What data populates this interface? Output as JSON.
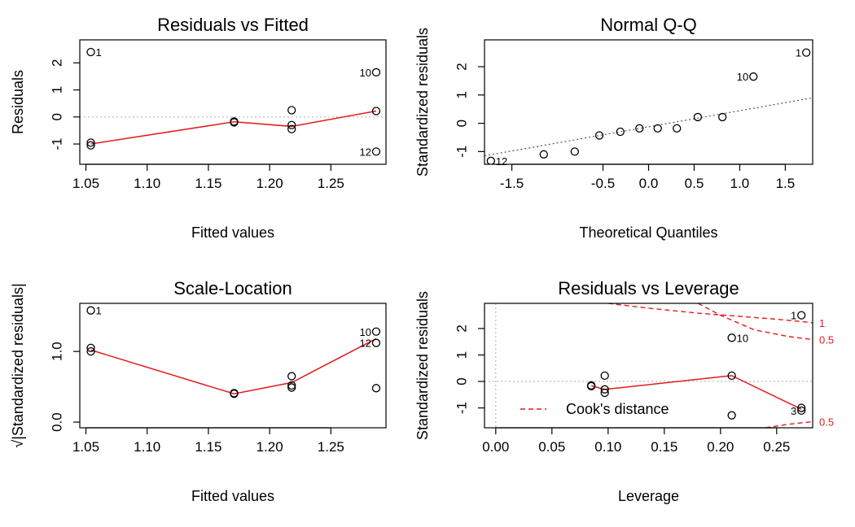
{
  "chart_data": [
    {
      "type": "scatter",
      "title": "Residuals vs Fitted",
      "xlabel": "Fitted values",
      "ylabel": "Residuals",
      "xlim": [
        1.045,
        1.295
      ],
      "ylim": [
        -1.75,
        2.85
      ],
      "xticks": [
        1.05,
        1.1,
        1.15,
        1.2,
        1.25
      ],
      "xtick_labels": [
        "1.05",
        "1.10",
        "1.15",
        "1.20",
        "1.25"
      ],
      "yticks": [
        -1,
        0,
        1,
        2
      ],
      "ytick_labels": [
        "-1",
        "0",
        "1",
        "2"
      ],
      "grid": false,
      "points": [
        {
          "x": 1.054,
          "y": 2.4
        },
        {
          "x": 1.054,
          "y": -0.95
        },
        {
          "x": 1.054,
          "y": -1.05
        },
        {
          "x": 1.171,
          "y": -0.17
        },
        {
          "x": 1.171,
          "y": -0.2
        },
        {
          "x": 1.218,
          "y": 0.25
        },
        {
          "x": 1.218,
          "y": -0.3
        },
        {
          "x": 1.218,
          "y": -0.45
        },
        {
          "x": 1.287,
          "y": 1.65
        },
        {
          "x": 1.287,
          "y": 0.22
        },
        {
          "x": 1.287,
          "y": -1.28
        }
      ],
      "point_labels": [
        {
          "text": "1",
          "x": 1.054,
          "y": 2.4,
          "side": "right"
        },
        {
          "text": "10",
          "x": 1.287,
          "y": 1.65,
          "side": "left"
        },
        {
          "text": "12",
          "x": 1.287,
          "y": -1.28,
          "side": "left"
        }
      ],
      "smooth_line": {
        "x": [
          1.054,
          1.171,
          1.218,
          1.287
        ],
        "y": [
          -1.0,
          -0.18,
          -0.35,
          0.22
        ],
        "color": "#e41a1c"
      },
      "reference_hline": {
        "y": 0,
        "color": "#bbbbbb",
        "style": "dotted"
      }
    },
    {
      "type": "scatter",
      "title": "Normal Q-Q",
      "xlabel": "Theoretical Quantiles",
      "ylabel": "Standardized residuals",
      "xlim": [
        -1.8,
        1.8
      ],
      "ylim": [
        -1.45,
        2.95
      ],
      "xticks": [
        -1.5,
        -0.5,
        0.0,
        0.5,
        1.0,
        1.5
      ],
      "xtick_labels": [
        "-1.5",
        "-0.5",
        "0.0",
        "0.5",
        "1.0",
        "1.5"
      ],
      "yticks": [
        -1,
        0,
        1,
        2
      ],
      "ytick_labels": [
        "-1",
        "0",
        "1",
        "2"
      ],
      "grid": false,
      "points": [
        {
          "x": -1.73,
          "y": -1.33
        },
        {
          "x": -1.15,
          "y": -1.1
        },
        {
          "x": -0.81,
          "y": -1.0
        },
        {
          "x": -0.54,
          "y": -0.43
        },
        {
          "x": -0.31,
          "y": -0.3
        },
        {
          "x": -0.1,
          "y": -0.18
        },
        {
          "x": 0.1,
          "y": -0.18
        },
        {
          "x": 0.31,
          "y": -0.18
        },
        {
          "x": 0.54,
          "y": 0.22
        },
        {
          "x": 0.81,
          "y": 0.22
        },
        {
          "x": 1.15,
          "y": 1.65
        },
        {
          "x": 1.73,
          "y": 2.5
        }
      ],
      "point_labels": [
        {
          "text": "12",
          "x": -1.73,
          "y": -1.33,
          "side": "right"
        },
        {
          "text": "10",
          "x": 1.15,
          "y": 1.65,
          "side": "left"
        },
        {
          "text": "1",
          "x": 1.73,
          "y": 2.5,
          "side": "left"
        }
      ],
      "reference_line": {
        "x": [
          -1.8,
          1.8
        ],
        "y": [
          -1.15,
          0.9
        ],
        "color": "#555555",
        "style": "dotted"
      }
    },
    {
      "type": "scatter",
      "title": "Scale-Location",
      "xlabel": "Fitted values",
      "ylabel": "√|Standardized residuals|",
      "xlim": [
        1.045,
        1.295
      ],
      "ylim": [
        -0.08,
        1.68
      ],
      "xticks": [
        1.05,
        1.1,
        1.15,
        1.2,
        1.25
      ],
      "xtick_labels": [
        "1.05",
        "1.10",
        "1.15",
        "1.20",
        "1.25"
      ],
      "yticks": [
        0.0,
        1.0
      ],
      "ytick_labels": [
        "0.0",
        "1.0"
      ],
      "grid": false,
      "points": [
        {
          "x": 1.054,
          "y": 1.58
        },
        {
          "x": 1.054,
          "y": 1.05
        },
        {
          "x": 1.054,
          "y": 1.0
        },
        {
          "x": 1.171,
          "y": 0.41
        },
        {
          "x": 1.171,
          "y": 0.4
        },
        {
          "x": 1.218,
          "y": 0.65
        },
        {
          "x": 1.218,
          "y": 0.52
        },
        {
          "x": 1.218,
          "y": 0.49
        },
        {
          "x": 1.287,
          "y": 1.28
        },
        {
          "x": 1.287,
          "y": 1.12
        },
        {
          "x": 1.287,
          "y": 0.48
        }
      ],
      "point_labels": [
        {
          "text": "1",
          "x": 1.054,
          "y": 1.58,
          "side": "right"
        },
        {
          "text": "10",
          "x": 1.287,
          "y": 1.28,
          "side": "left"
        },
        {
          "text": "12",
          "x": 1.287,
          "y": 1.12,
          "side": "left"
        }
      ],
      "smooth_line": {
        "x": [
          1.054,
          1.171,
          1.218,
          1.287
        ],
        "y": [
          1.02,
          0.4,
          0.56,
          1.18
        ],
        "color": "#e41a1c"
      }
    },
    {
      "type": "scatter",
      "title": "Residuals vs Leverage",
      "xlabel": "Leverage",
      "ylabel": "Standardized residuals",
      "xlim": [
        -0.01,
        0.282
      ],
      "ylim": [
        -1.75,
        2.95
      ],
      "xticks": [
        0.0,
        0.05,
        0.1,
        0.15,
        0.2,
        0.25
      ],
      "xtick_labels": [
        "0.00",
        "0.05",
        "0.10",
        "0.15",
        "0.20",
        "0.25"
      ],
      "yticks": [
        -1,
        0,
        1,
        2
      ],
      "ytick_labels": [
        "-1",
        "0",
        "1",
        "2"
      ],
      "grid": false,
      "points": [
        {
          "x": 0.085,
          "y": -0.18
        },
        {
          "x": 0.085,
          "y": -0.15
        },
        {
          "x": 0.097,
          "y": 0.22
        },
        {
          "x": 0.097,
          "y": -0.3
        },
        {
          "x": 0.097,
          "y": -0.43
        },
        {
          "x": 0.21,
          "y": 1.65
        },
        {
          "x": 0.21,
          "y": 0.22
        },
        {
          "x": 0.21,
          "y": -1.28
        },
        {
          "x": 0.272,
          "y": 2.5
        },
        {
          "x": 0.272,
          "y": -1.0
        },
        {
          "x": 0.272,
          "y": -1.1
        }
      ],
      "point_labels": [
        {
          "text": "1",
          "x": 0.272,
          "y": 2.5,
          "side": "left"
        },
        {
          "text": "10",
          "x": 0.21,
          "y": 1.65,
          "side": "right"
        },
        {
          "text": "3",
          "x": 0.272,
          "y": -1.1,
          "side": "left"
        }
      ],
      "smooth_line": {
        "x": [
          0.085,
          0.097,
          0.21,
          0.272
        ],
        "y": [
          -0.16,
          -0.3,
          0.22,
          -1.05
        ],
        "color": "#e41a1c"
      },
      "reference_hline": {
        "y": 0,
        "color": "#bbbbbb",
        "style": "dotted"
      },
      "reference_vline": {
        "x": 0,
        "color": "#bbbbbb",
        "style": "dotted"
      },
      "cooks_curves": [
        {
          "level": "1",
          "x": [
            0.1,
            0.14,
            0.18,
            0.22,
            0.25,
            0.282
          ],
          "y": [
            2.95,
            2.75,
            2.58,
            2.45,
            2.35,
            2.22
          ],
          "color": "#e41a1c"
        },
        {
          "level": "0.5",
          "x": [
            0.18,
            0.2,
            0.23,
            0.26,
            0.282
          ],
          "y": [
            2.95,
            2.5,
            1.95,
            1.7,
            1.58
          ],
          "color": "#e41a1c"
        },
        {
          "level": "0.5",
          "x": [
            0.24,
            0.26,
            0.282
          ],
          "y": [
            -1.75,
            -1.62,
            -1.52
          ],
          "color": "#e41a1c"
        }
      ],
      "cooks_curve_labels": [
        "1",
        "0.5",
        "0.5"
      ],
      "legend": {
        "position": "bottom-left",
        "entries": [
          {
            "label": "Cook's distance",
            "color": "#e41a1c",
            "style": "dashed"
          }
        ]
      }
    }
  ]
}
